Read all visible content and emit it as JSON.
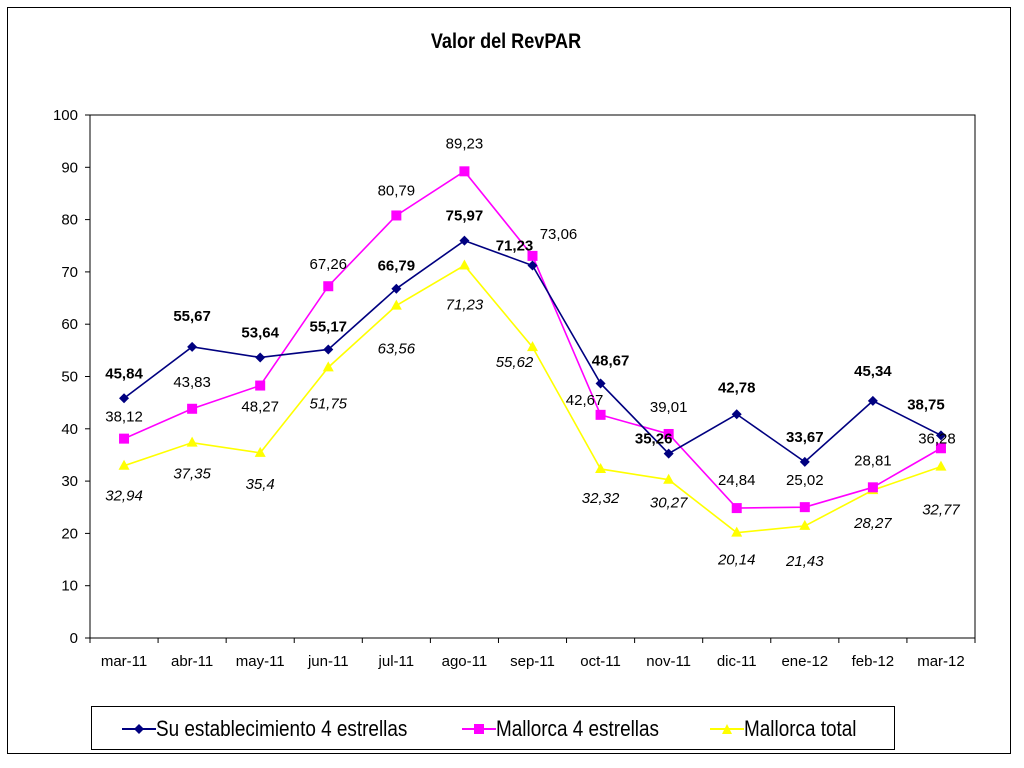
{
  "colors": {
    "su": "#000080",
    "mallorca4": "#ff00ff",
    "total": "#ffff00",
    "border": "#000000",
    "gridline": "#000000"
  },
  "chart_data": {
    "type": "line",
    "title": "Valor del RevPAR",
    "xlabel": "",
    "ylabel": "",
    "ylim": [
      0,
      100
    ],
    "yticks": [
      "0",
      "10",
      "20",
      "30",
      "40",
      "50",
      "60",
      "70",
      "80",
      "90",
      "100"
    ],
    "categories": [
      "mar-11",
      "abr-11",
      "may-11",
      "jun-11",
      "jul-11",
      "ago-11",
      "sep-11",
      "oct-11",
      "nov-11",
      "dic-11",
      "ene-12",
      "feb-12",
      "mar-12"
    ],
    "legend_position": "bottom",
    "grid": false,
    "series": [
      {
        "name": "Su establecimiento  4 estrellas",
        "color": "#000080",
        "marker": "diamond",
        "label_style": "bold",
        "values": [
          45.84,
          55.67,
          53.64,
          55.17,
          66.79,
          75.97,
          71.23,
          48.67,
          35.26,
          42.78,
          33.67,
          45.34,
          38.75
        ],
        "labels": [
          "45,84",
          "55,67",
          "53,64",
          "55,17",
          "66,79",
          "75,97",
          "71,23",
          "48,67",
          "35,26",
          "42,78",
          "33,67",
          "45,34",
          "38,75"
        ]
      },
      {
        "name": "Mallorca 4 estrellas",
        "color": "#ff00ff",
        "marker": "square",
        "label_style": "normal",
        "values": [
          38.12,
          43.83,
          48.27,
          67.26,
          80.79,
          89.23,
          73.06,
          42.67,
          39.01,
          24.84,
          25.02,
          28.81,
          36.28
        ],
        "labels": [
          "38,12",
          "43,83",
          "48,27",
          "67,26",
          "80,79",
          "89,23",
          "73,06",
          "42,67",
          "39,01",
          "24,84",
          "25,02",
          "28,81",
          "36,28"
        ]
      },
      {
        "name": "Mallorca total",
        "color": "#ffff00",
        "marker": "triangle",
        "label_style": "italic",
        "values": [
          32.94,
          37.35,
          35.4,
          51.75,
          63.56,
          71.23,
          55.62,
          32.32,
          30.27,
          20.14,
          21.43,
          28.27,
          32.77
        ],
        "labels": [
          "32,94",
          "37,35",
          "35,4",
          "51,75",
          "63,56",
          "71,23",
          "55,62",
          "32,32",
          "30,27",
          "20,14",
          "21,43",
          "28,27",
          "32,77"
        ]
      }
    ]
  }
}
